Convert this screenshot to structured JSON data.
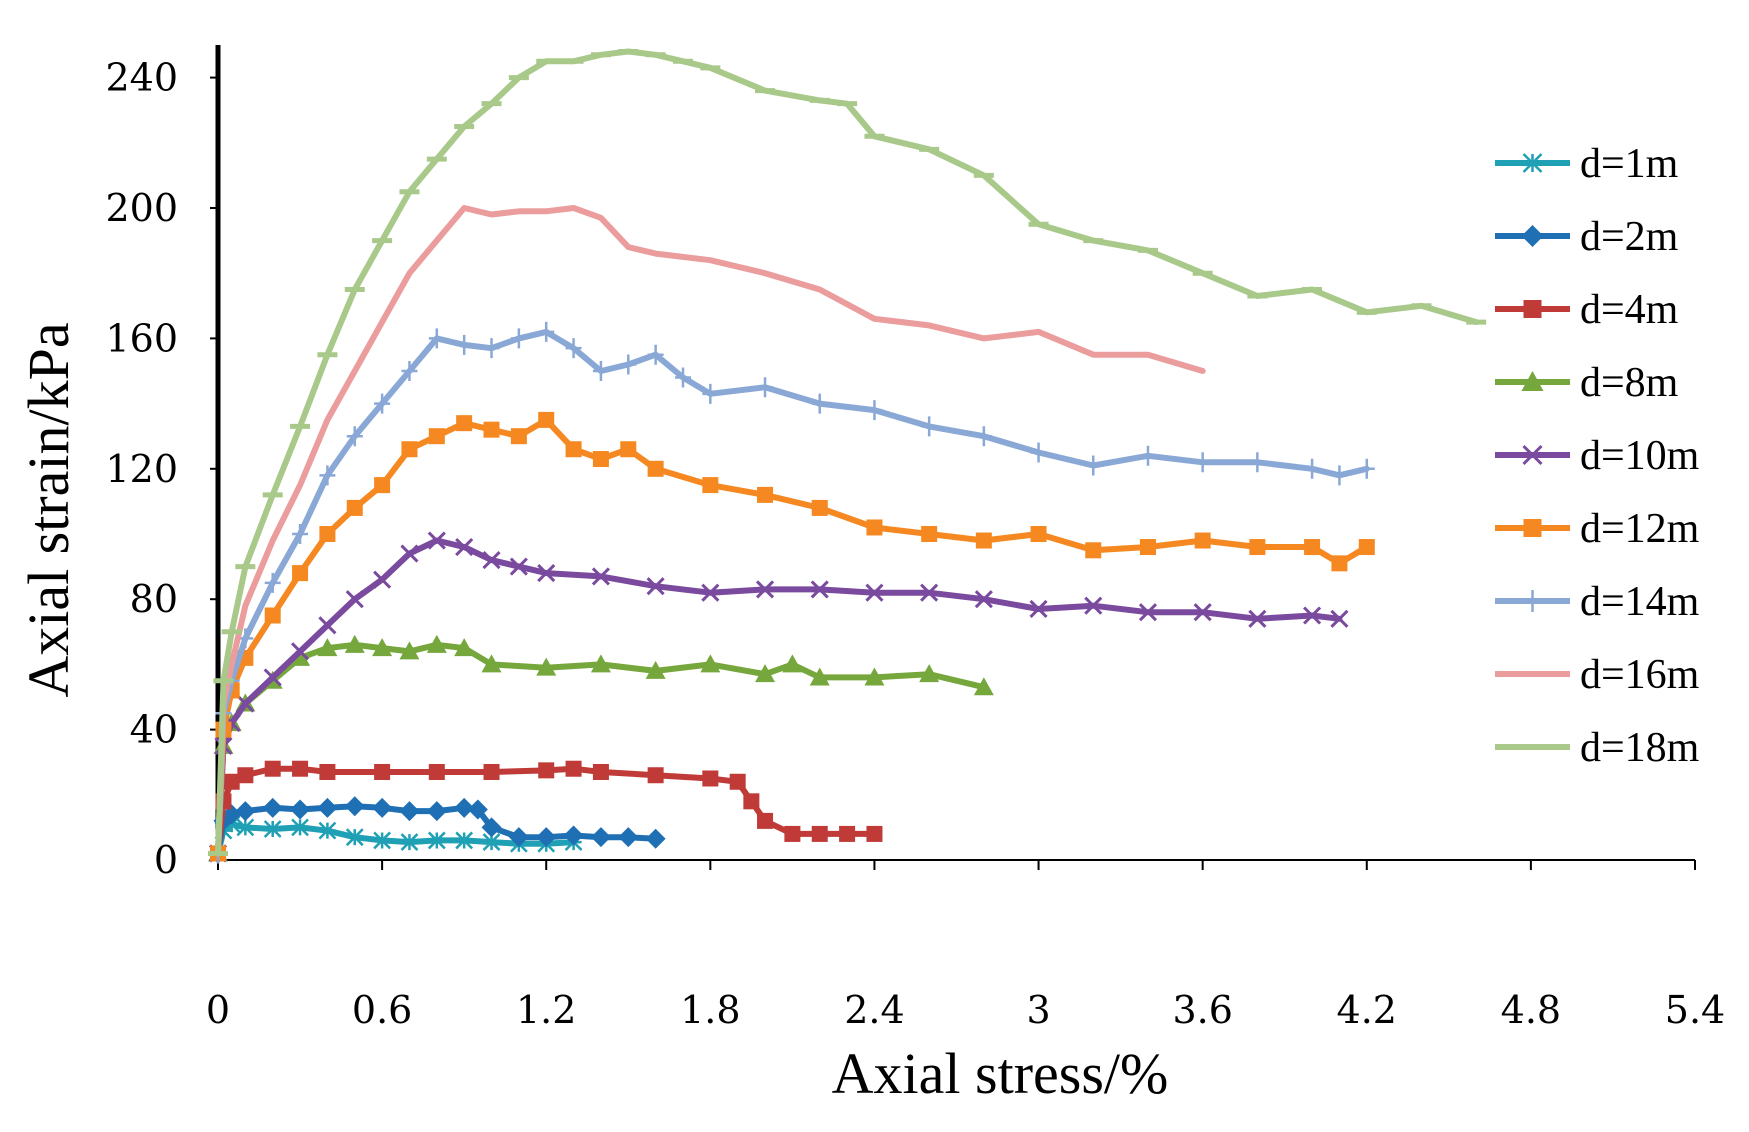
{
  "chart_data": {
    "type": "line",
    "title": "",
    "xlabel": "Axial stress/%",
    "ylabel": "Axial strain/kPa",
    "xlim": [
      0,
      5.4
    ],
    "ylim": [
      0,
      250
    ],
    "x_ticks": [
      0,
      0.6,
      1.2,
      1.8,
      2.4,
      3,
      3.6,
      4.2,
      4.8,
      5.4
    ],
    "x_tick_labels": [
      "0",
      "0.6",
      "1.2",
      "1.8",
      "2.4",
      "3",
      "3.6",
      "4.2",
      "4.8",
      "5.4"
    ],
    "y_ticks": [
      0,
      40,
      80,
      120,
      160,
      200,
      240
    ],
    "y_tick_labels": [
      "0",
      "40",
      "80",
      "120",
      "160",
      "200",
      "240"
    ],
    "grid": false,
    "legend_position": "right",
    "series": [
      {
        "name": "d=1m",
        "color": "#1fa0b4",
        "marker": "star",
        "x": [
          0,
          0.02,
          0.05,
          0.1,
          0.2,
          0.3,
          0.4,
          0.5,
          0.6,
          0.7,
          0.8,
          0.9,
          1.0,
          1.1,
          1.2,
          1.3
        ],
        "y": [
          2,
          9,
          11,
          10,
          9.5,
          10,
          9,
          7,
          6,
          5.5,
          6,
          6,
          5.5,
          5,
          5,
          5.5
        ]
      },
      {
        "name": "d=2m",
        "color": "#1f6fb4",
        "marker": "diamond",
        "x": [
          0,
          0.02,
          0.05,
          0.1,
          0.2,
          0.3,
          0.4,
          0.5,
          0.6,
          0.7,
          0.8,
          0.9,
          0.95,
          1.0,
          1.1,
          1.2,
          1.3,
          1.4,
          1.5,
          1.6
        ],
        "y": [
          2,
          12,
          14,
          15,
          16,
          15.5,
          16,
          16.5,
          16,
          15,
          15,
          16,
          15.5,
          10,
          7,
          7,
          7.5,
          7,
          7,
          6.5
        ]
      },
      {
        "name": "d=4m",
        "color": "#c03a38",
        "marker": "square",
        "x": [
          0,
          0.02,
          0.05,
          0.1,
          0.2,
          0.3,
          0.4,
          0.6,
          0.8,
          1.0,
          1.2,
          1.3,
          1.4,
          1.6,
          1.8,
          1.9,
          1.95,
          2.0,
          2.1,
          2.2,
          2.3,
          2.4
        ],
        "y": [
          2,
          18,
          24,
          26,
          28,
          28,
          27,
          27,
          27,
          27,
          27.5,
          28,
          27,
          26,
          25,
          24,
          18,
          12,
          8,
          8,
          8,
          8
        ]
      },
      {
        "name": "d=8m",
        "color": "#76a73c",
        "marker": "triangle",
        "x": [
          0,
          0.02,
          0.05,
          0.1,
          0.2,
          0.3,
          0.4,
          0.5,
          0.6,
          0.7,
          0.8,
          0.9,
          1.0,
          1.2,
          1.4,
          1.6,
          1.8,
          2.0,
          2.1,
          2.2,
          2.4,
          2.6,
          2.8
        ],
        "y": [
          2,
          35,
          42,
          48,
          55,
          62,
          65,
          66,
          65,
          64,
          66,
          65,
          60,
          59,
          60,
          58,
          60,
          57,
          60,
          56,
          56,
          57,
          53
        ]
      },
      {
        "name": "d=10m",
        "color": "#7a4a9e",
        "marker": "x",
        "x": [
          0,
          0.02,
          0.05,
          0.1,
          0.2,
          0.3,
          0.4,
          0.5,
          0.6,
          0.7,
          0.8,
          0.9,
          1.0,
          1.1,
          1.2,
          1.4,
          1.6,
          1.8,
          2.0,
          2.2,
          2.4,
          2.6,
          2.8,
          3.0,
          3.2,
          3.4,
          3.6,
          3.8,
          4.0,
          4.1
        ],
        "y": [
          2,
          35,
          42,
          48,
          56,
          64,
          72,
          80,
          86,
          94,
          98,
          96,
          92,
          90,
          88,
          87,
          84,
          82,
          83,
          83,
          82,
          82,
          80,
          77,
          78,
          76,
          76,
          74,
          75,
          74
        ]
      },
      {
        "name": "d=12m",
        "color": "#f58820",
        "marker": "square",
        "x": [
          0,
          0.02,
          0.05,
          0.1,
          0.2,
          0.3,
          0.4,
          0.5,
          0.6,
          0.7,
          0.8,
          0.9,
          1.0,
          1.1,
          1.2,
          1.3,
          1.4,
          1.5,
          1.6,
          1.8,
          2.0,
          2.2,
          2.4,
          2.6,
          2.8,
          3.0,
          3.2,
          3.4,
          3.6,
          3.8,
          4.0,
          4.1,
          4.2
        ],
        "y": [
          2,
          40,
          52,
          62,
          75,
          88,
          100,
          108,
          115,
          126,
          130,
          134,
          132,
          130,
          135,
          126,
          123,
          126,
          120,
          115,
          112,
          108,
          102,
          100,
          98,
          100,
          95,
          96,
          98,
          96,
          96,
          91,
          96
        ]
      },
      {
        "name": "d=14m",
        "color": "#8aa8d6",
        "marker": "plus",
        "x": [
          0,
          0.02,
          0.05,
          0.1,
          0.2,
          0.3,
          0.4,
          0.5,
          0.6,
          0.7,
          0.8,
          0.9,
          1.0,
          1.1,
          1.2,
          1.3,
          1.4,
          1.5,
          1.6,
          1.7,
          1.8,
          2.0,
          2.2,
          2.4,
          2.6,
          2.8,
          3.0,
          3.2,
          3.4,
          3.6,
          3.8,
          4.0,
          4.1,
          4.2
        ],
        "y": [
          2,
          45,
          55,
          68,
          85,
          100,
          118,
          130,
          140,
          150,
          160,
          158,
          157,
          160,
          162,
          157,
          150,
          152,
          155,
          148,
          143,
          145,
          140,
          138,
          133,
          130,
          125,
          121,
          124,
          122,
          122,
          120,
          118,
          120
        ]
      },
      {
        "name": "d=16m",
        "color": "#eb9c9c",
        "marker": "none",
        "x": [
          0,
          0.02,
          0.05,
          0.1,
          0.2,
          0.3,
          0.4,
          0.5,
          0.6,
          0.7,
          0.8,
          0.9,
          1.0,
          1.1,
          1.2,
          1.3,
          1.4,
          1.5,
          1.6,
          1.8,
          2.0,
          2.2,
          2.4,
          2.6,
          2.8,
          3.0,
          3.2,
          3.4,
          3.6
        ],
        "y": [
          2,
          48,
          60,
          78,
          98,
          115,
          135,
          150,
          165,
          180,
          190,
          200,
          198,
          199,
          199,
          200,
          197,
          188,
          186,
          184,
          180,
          175,
          166,
          164,
          160,
          162,
          155,
          155,
          150
        ]
      },
      {
        "name": "d=18m",
        "color": "#a8c98a",
        "marker": "minus",
        "x": [
          0,
          0.02,
          0.05,
          0.1,
          0.2,
          0.3,
          0.4,
          0.5,
          0.6,
          0.7,
          0.8,
          0.9,
          1.0,
          1.1,
          1.2,
          1.3,
          1.4,
          1.5,
          1.6,
          1.7,
          1.8,
          2.0,
          2.2,
          2.3,
          2.4,
          2.6,
          2.8,
          3.0,
          3.2,
          3.4,
          3.6,
          3.8,
          4.0,
          4.2,
          4.4,
          4.6
        ],
        "y": [
          2,
          55,
          70,
          90,
          112,
          133,
          155,
          175,
          190,
          205,
          215,
          225,
          232,
          240,
          245,
          245,
          247,
          248,
          247,
          245,
          243,
          236,
          233,
          232,
          222,
          218,
          210,
          195,
          190,
          187,
          180,
          173,
          175,
          168,
          170,
          165
        ]
      }
    ]
  }
}
